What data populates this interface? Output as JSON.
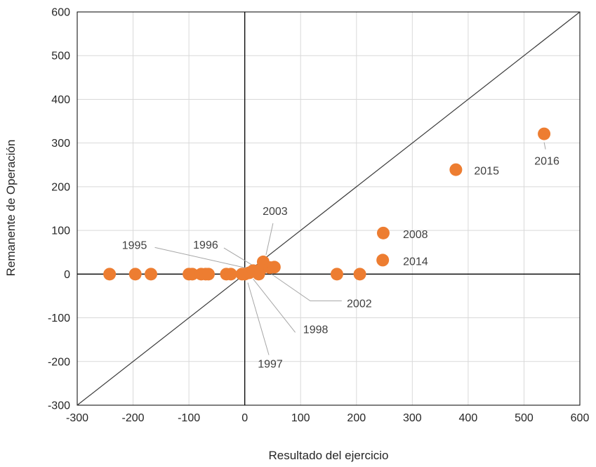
{
  "chart_data": {
    "type": "scatter",
    "title": "",
    "xlabel": "Resultado del ejercicio",
    "ylabel": "Remanente de Operación",
    "xlim": [
      -300,
      600
    ],
    "ylim": [
      -300,
      600
    ],
    "xticks": [
      "-300",
      "-200",
      "-100",
      "0",
      "100",
      "200",
      "300",
      "400",
      "500",
      "600"
    ],
    "yticks": [
      "-300",
      "-200",
      "-100",
      "0",
      "100",
      "200",
      "300",
      "400",
      "500",
      "600"
    ],
    "grid": true,
    "reference_line": {
      "type": "identity",
      "from": [
        -300,
        -300
      ],
      "to": [
        600,
        600
      ]
    },
    "series": [
      {
        "marker_color": "#ED7D31",
        "points": [
          {
            "x": -242,
            "y": 0
          },
          {
            "x": -196,
            "y": 0
          },
          {
            "x": -168,
            "y": 0
          },
          {
            "x": -100,
            "y": 0
          },
          {
            "x": -94,
            "y": 0
          },
          {
            "x": -78,
            "y": 0
          },
          {
            "x": -70,
            "y": 0
          },
          {
            "x": -65,
            "y": 0
          },
          {
            "x": -33,
            "y": 0
          },
          {
            "x": -25,
            "y": 0
          },
          {
            "x": -5,
            "y": 0
          },
          {
            "x": 0,
            "y": 0
          },
          {
            "x": 8,
            "y": 3
          },
          {
            "x": 15,
            "y": 8
          },
          {
            "x": 25,
            "y": 0
          },
          {
            "x": 28,
            "y": 10
          },
          {
            "x": 33,
            "y": 28
          },
          {
            "x": 45,
            "y": 15
          },
          {
            "x": 53,
            "y": 16
          },
          {
            "x": 165,
            "y": 0
          },
          {
            "x": 206,
            "y": 0
          },
          {
            "x": 247,
            "y": 32
          },
          {
            "x": 248,
            "y": 94
          },
          {
            "x": 378,
            "y": 239
          },
          {
            "x": 536,
            "y": 321
          }
        ]
      }
    ],
    "annotations": [
      {
        "label": "2016",
        "x": 536,
        "y": 321
      },
      {
        "label": "2015",
        "x": 378,
        "y": 239
      },
      {
        "label": "2008",
        "x": 248,
        "y": 94
      },
      {
        "label": "2014",
        "x": 247,
        "y": 32
      },
      {
        "label": "2003",
        "x": 33,
        "y": 28
      },
      {
        "label": "1996",
        "x": 28,
        "y": 10
      },
      {
        "label": "1995",
        "x": 25,
        "y": 0
      },
      {
        "label": "2002",
        "x": 53,
        "y": 16
      },
      {
        "label": "1998",
        "x": 15,
        "y": 8
      },
      {
        "label": "1997",
        "x": 8,
        "y": 3
      }
    ]
  }
}
